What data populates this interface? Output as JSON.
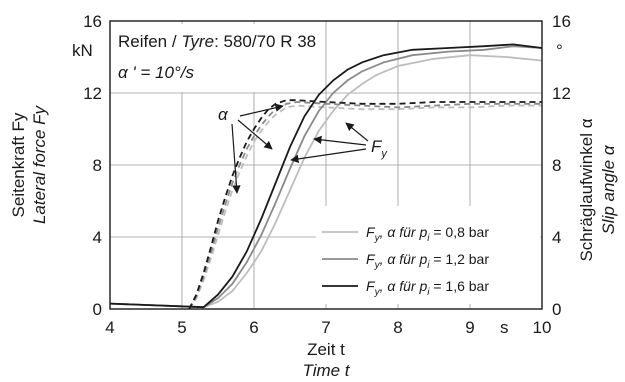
{
  "chart_data": {
    "type": "line",
    "xlim": [
      4,
      10
    ],
    "ylim": [
      0,
      16
    ],
    "y2lim": [
      0,
      16
    ],
    "grid": true,
    "x_ticks": [
      "4",
      "5",
      "6",
      "7",
      "8",
      "9",
      "10"
    ],
    "y_ticks": [
      "0",
      "4",
      "8",
      "12",
      "16"
    ],
    "y2_ticks": [
      "0",
      "4",
      "8",
      "12",
      "16"
    ],
    "x_unit": "s",
    "y_unit": "kN",
    "y2_unit": "°",
    "xlabel": "Zeit t",
    "xlabel_en": "Time t",
    "ylabel": "Seitenkraft Fy",
    "ylabel_en": "Lateral force Fy",
    "y2label": "Schräglaufwinkel α",
    "y2label_en": "Slip angle α",
    "annotations": {
      "tyre_de": "Reifen / ",
      "tyre_en": "Tyre",
      "tyre_size": ": 580/70 R 38",
      "rate": "α ' = 10°/s",
      "alpha": "α",
      "force": "F",
      "force_sub": "y"
    },
    "legend": {
      "placement": "bottom-right",
      "entries": [
        {
          "f": "F",
          "fsub": "y",
          "mid": ", α für p",
          "psub": "i",
          "value": " = 0,8 bar"
        },
        {
          "f": "F",
          "fsub": "y",
          "mid": ", α für p",
          "psub": "i",
          "value": " = 1,2 bar"
        },
        {
          "f": "F",
          "fsub": "y",
          "mid": ", α für p",
          "psub": "i",
          "value": " = 1,6 bar"
        }
      ]
    },
    "series": [
      {
        "color": "#bdbdbd",
        "force": [
          [
            4,
            0.3
          ],
          [
            5.3,
            0.1
          ],
          [
            5.5,
            0.4
          ],
          [
            5.7,
            1.0
          ],
          [
            5.9,
            2.0
          ],
          [
            6.1,
            3.2
          ],
          [
            6.3,
            4.8
          ],
          [
            6.5,
            6.6
          ],
          [
            6.7,
            8.4
          ],
          [
            6.9,
            9.9
          ],
          [
            7.1,
            11.0
          ],
          [
            7.3,
            11.9
          ],
          [
            7.5,
            12.5
          ],
          [
            7.7,
            13.0
          ],
          [
            8.0,
            13.5
          ],
          [
            8.5,
            13.9
          ],
          [
            9.0,
            14.1
          ],
          [
            9.5,
            14.0
          ],
          [
            10,
            13.8
          ]
        ],
        "angle": [
          [
            5.1,
            0
          ],
          [
            5.2,
            0.6
          ],
          [
            5.3,
            1.6
          ],
          [
            5.4,
            2.8
          ],
          [
            5.5,
            4.1
          ],
          [
            5.6,
            5.4
          ],
          [
            5.7,
            6.6
          ],
          [
            5.8,
            7.6
          ],
          [
            5.9,
            8.5
          ],
          [
            6.0,
            9.3
          ],
          [
            6.1,
            9.9
          ],
          [
            6.2,
            10.4
          ],
          [
            6.3,
            10.8
          ],
          [
            6.45,
            11.2
          ],
          [
            6.6,
            11.3
          ],
          [
            7.0,
            11.2
          ],
          [
            7.5,
            11.1
          ],
          [
            8.0,
            11.1
          ],
          [
            8.5,
            11.2
          ],
          [
            9.0,
            11.2
          ],
          [
            9.5,
            11.3
          ],
          [
            10,
            11.3
          ]
        ]
      },
      {
        "color": "#8a8a8a",
        "force": [
          [
            4,
            0.3
          ],
          [
            5.3,
            0.1
          ],
          [
            5.5,
            0.6
          ],
          [
            5.7,
            1.4
          ],
          [
            5.9,
            2.6
          ],
          [
            6.1,
            4.1
          ],
          [
            6.3,
            5.9
          ],
          [
            6.5,
            7.8
          ],
          [
            6.7,
            9.6
          ],
          [
            6.9,
            11.0
          ],
          [
            7.1,
            12.0
          ],
          [
            7.3,
            12.7
          ],
          [
            7.5,
            13.2
          ],
          [
            7.8,
            13.7
          ],
          [
            8.2,
            14.1
          ],
          [
            8.7,
            14.3
          ],
          [
            9.2,
            14.4
          ],
          [
            9.6,
            14.6
          ],
          [
            10,
            14.5
          ]
        ],
        "angle": [
          [
            5.1,
            0
          ],
          [
            5.2,
            0.7
          ],
          [
            5.3,
            1.8
          ],
          [
            5.4,
            3.1
          ],
          [
            5.5,
            4.5
          ],
          [
            5.6,
            5.8
          ],
          [
            5.7,
            7.0
          ],
          [
            5.8,
            8.0
          ],
          [
            5.9,
            8.9
          ],
          [
            6.0,
            9.6
          ],
          [
            6.1,
            10.2
          ],
          [
            6.2,
            10.7
          ],
          [
            6.3,
            11.1
          ],
          [
            6.45,
            11.4
          ],
          [
            6.6,
            11.5
          ],
          [
            7.0,
            11.4
          ],
          [
            7.5,
            11.3
          ],
          [
            8.0,
            11.2
          ],
          [
            8.5,
            11.3
          ],
          [
            9.0,
            11.4
          ],
          [
            9.5,
            11.4
          ],
          [
            10,
            11.4
          ]
        ]
      },
      {
        "color": "#1a1a1a",
        "force": [
          [
            4,
            0.3
          ],
          [
            5.3,
            0.1
          ],
          [
            5.5,
            0.8
          ],
          [
            5.7,
            1.8
          ],
          [
            5.9,
            3.2
          ],
          [
            6.1,
            5.0
          ],
          [
            6.3,
            7.0
          ],
          [
            6.5,
            9.0
          ],
          [
            6.7,
            10.7
          ],
          [
            6.9,
            11.9
          ],
          [
            7.1,
            12.7
          ],
          [
            7.3,
            13.3
          ],
          [
            7.5,
            13.7
          ],
          [
            7.8,
            14.1
          ],
          [
            8.2,
            14.4
          ],
          [
            8.7,
            14.5
          ],
          [
            9.2,
            14.6
          ],
          [
            9.6,
            14.7
          ],
          [
            10,
            14.5
          ]
        ],
        "angle": [
          [
            5.1,
            0
          ],
          [
            5.2,
            0.8
          ],
          [
            5.3,
            2.0
          ],
          [
            5.4,
            3.4
          ],
          [
            5.5,
            4.9
          ],
          [
            5.6,
            6.2
          ],
          [
            5.7,
            7.4
          ],
          [
            5.8,
            8.4
          ],
          [
            5.9,
            9.3
          ],
          [
            6.0,
            10.0
          ],
          [
            6.1,
            10.6
          ],
          [
            6.2,
            11.1
          ],
          [
            6.3,
            11.4
          ],
          [
            6.45,
            11.6
          ],
          [
            6.6,
            11.6
          ],
          [
            7.0,
            11.5
          ],
          [
            7.5,
            11.4
          ],
          [
            8.0,
            11.4
          ],
          [
            8.5,
            11.5
          ],
          [
            9.0,
            11.5
          ],
          [
            9.5,
            11.5
          ],
          [
            10,
            11.5
          ]
        ]
      }
    ]
  }
}
